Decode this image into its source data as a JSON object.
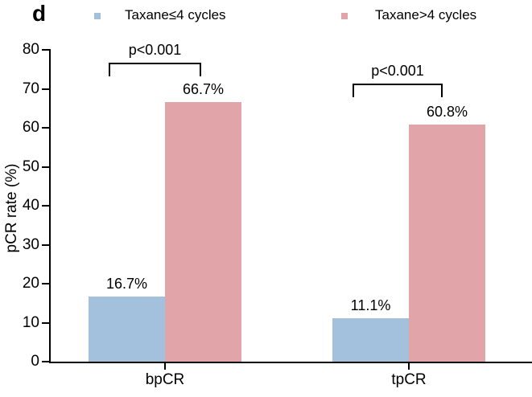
{
  "panel_label": "d",
  "chart_data": {
    "type": "bar",
    "title": "",
    "categories": [
      "bpCR",
      "tpCR"
    ],
    "series": [
      {
        "name": "Taxane≤4 cycles",
        "color": "#a3c0dc",
        "values": [
          16.7,
          11.1
        ]
      },
      {
        "name": "Taxane>4 cycles",
        "color": "#e0a4a9",
        "values": [
          66.7,
          60.8
        ]
      }
    ],
    "value_labels": [
      [
        "16.7%",
        "11.1%"
      ],
      [
        "66.7%",
        "60.8%"
      ]
    ],
    "ylabel": "pCR rate (%)",
    "xlabel": "",
    "ylim": [
      0,
      80
    ],
    "yticks": [
      0,
      10,
      20,
      30,
      40,
      50,
      60,
      70,
      80
    ],
    "grid": false,
    "legend_position": "top",
    "annotations": [
      {
        "text": "p<0.001",
        "category": "bpCR",
        "compares": [
          "Taxane≤4 cycles",
          "Taxane>4 cycles"
        ]
      },
      {
        "text": "p<0.001",
        "category": "tpCR",
        "compares": [
          "Taxane≤4 cycles",
          "Taxane>4 cycles"
        ]
      }
    ],
    "axis_color": "#000000"
  }
}
